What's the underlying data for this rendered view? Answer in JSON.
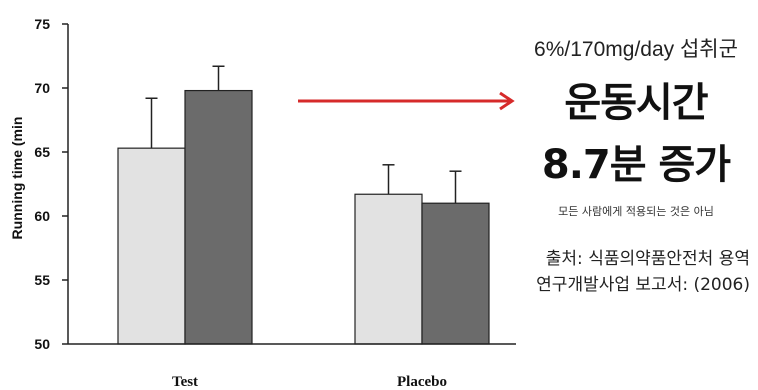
{
  "chart_data": {
    "type": "bar",
    "categories": [
      "Test",
      "Placebo"
    ],
    "series": [
      {
        "values": [
          65.3,
          61.7
        ],
        "errors": [
          3.9,
          2.3
        ],
        "color": "#e2e2e2"
      },
      {
        "values": [
          69.8,
          61.0
        ],
        "errors": [
          1.9,
          2.5
        ],
        "color": "#6b6b6b"
      }
    ],
    "ylabel": "Running time (min",
    "ylim": [
      50,
      75
    ],
    "yticks": [
      50,
      55,
      60,
      65,
      70,
      75
    ],
    "grid": false
  },
  "arrow_color": "#d62a2a",
  "annotation": {
    "subtitle": "6%/170mg/day 섭취군",
    "headline_line1": "운동시간",
    "headline_line2": "8.7분 증가",
    "note": "모든 사람에게 적용되는 것은 아님",
    "source_line1": "출처: 식품의약품안전처 용역",
    "source_line2": "연구개발사업 보고서: (2006)"
  }
}
